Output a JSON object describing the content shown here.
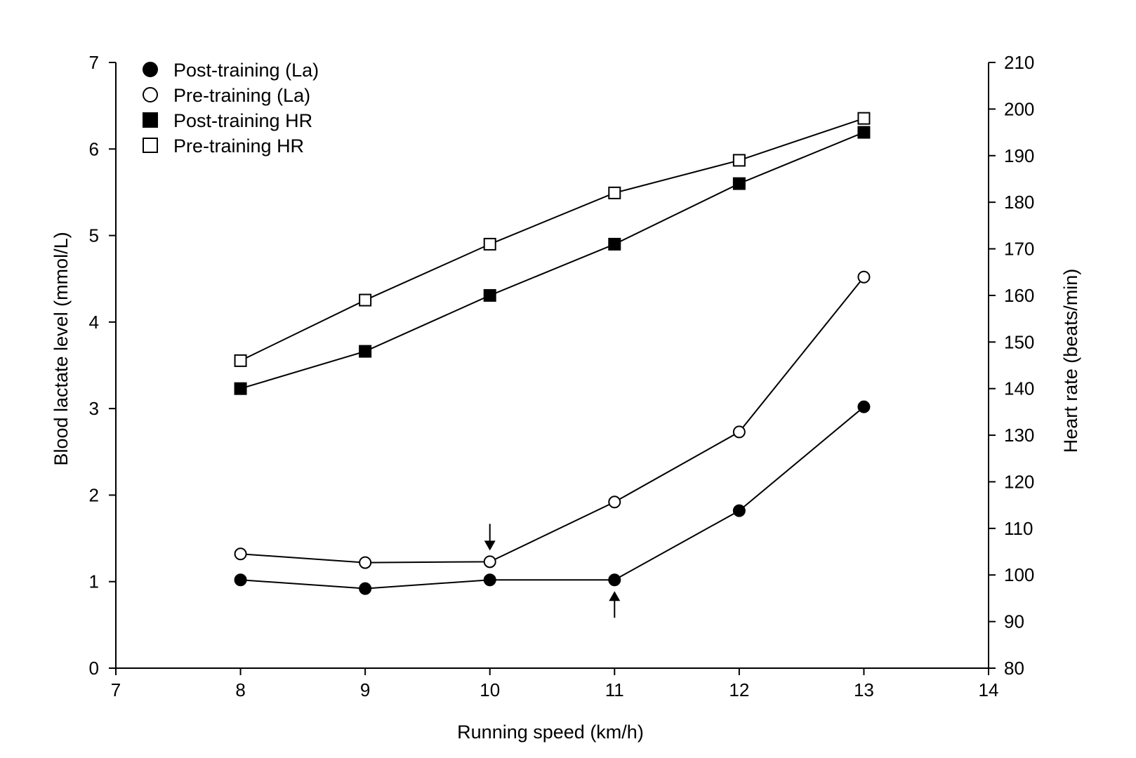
{
  "chart_data": {
    "type": "line",
    "title": "",
    "xlabel": "Running speed (km/h)",
    "ylabel": "Blood lactate level (mmol/L)",
    "y2label": "Heart rate (beats/min)",
    "xlim": [
      7,
      14
    ],
    "ylim": [
      0,
      7
    ],
    "y2lim": [
      80,
      210
    ],
    "x_ticks": [
      7,
      8,
      9,
      10,
      11,
      12,
      13,
      14
    ],
    "y_ticks": [
      0,
      1,
      2,
      3,
      4,
      5,
      6,
      7
    ],
    "y2_ticks": [
      80,
      90,
      100,
      110,
      120,
      130,
      140,
      150,
      160,
      170,
      180,
      190,
      200,
      210
    ],
    "grid": false,
    "legend_position": "top-left",
    "x": [
      8,
      9,
      10,
      11,
      12,
      13
    ],
    "series": [
      {
        "name": "Post-training (La)",
        "axis": "left",
        "marker": "filled-circle",
        "values": [
          1.02,
          0.92,
          1.02,
          1.02,
          1.82,
          3.02
        ]
      },
      {
        "name": "Pre-training (La)",
        "axis": "left",
        "marker": "open-circle",
        "values": [
          1.32,
          1.22,
          1.23,
          1.92,
          2.73,
          4.52
        ]
      },
      {
        "name": "Post-training HR",
        "axis": "right",
        "marker": "filled-square",
        "values": [
          140,
          148,
          160,
          171,
          184,
          195
        ]
      },
      {
        "name": "Pre-training HR",
        "axis": "right",
        "marker": "open-square",
        "values": [
          146,
          159,
          171,
          182,
          189,
          198
        ]
      }
    ],
    "annotations": [
      {
        "type": "arrow-down",
        "x": 10,
        "series": "Pre-training (La)"
      },
      {
        "type": "arrow-up",
        "x": 11,
        "series": "Post-training (La)"
      }
    ]
  }
}
